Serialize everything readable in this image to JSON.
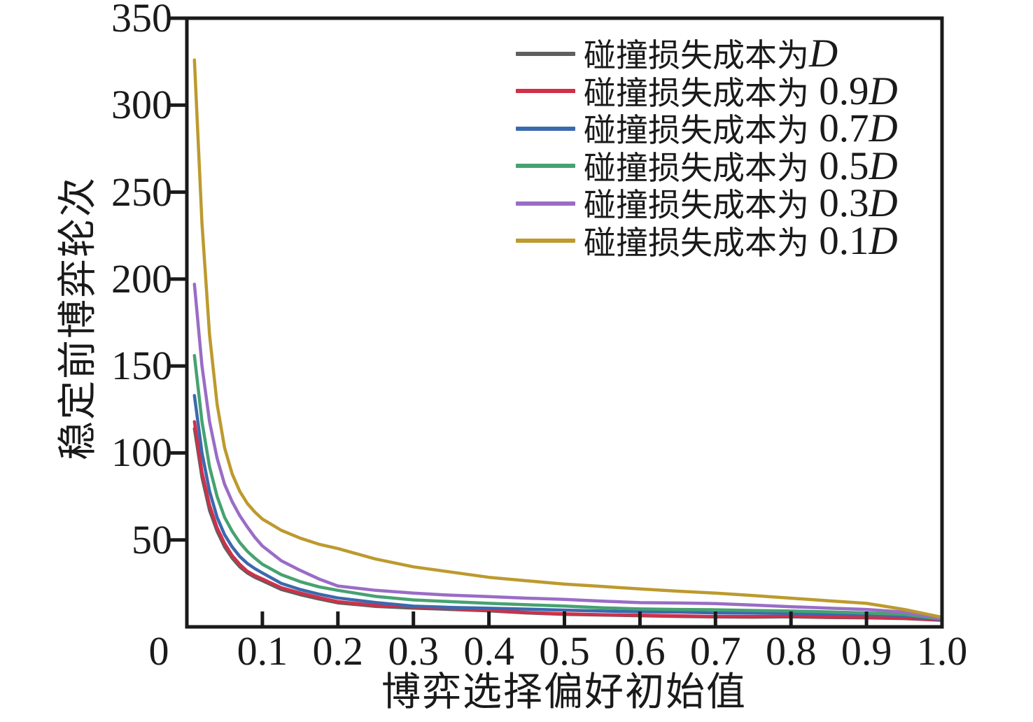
{
  "chart_data": {
    "type": "line",
    "title": "",
    "xlabel": "博弈选择偏好初始值",
    "ylabel": "稳定前博弈轮次",
    "xlim": [
      0,
      1.0
    ],
    "ylim": [
      0,
      350
    ],
    "grid": "off",
    "legend_position": "upper right",
    "axis_color": "#1a1a1a",
    "x_tick_labels": [
      "0",
      "0.1",
      "0.2",
      "0.3",
      "0.4",
      "0.5",
      "0.6",
      "0.7",
      "0.8",
      "0.9",
      "1.0"
    ],
    "x_tick_values": [
      0,
      0.1,
      0.2,
      0.3,
      0.4,
      0.5,
      0.6,
      0.7,
      0.8,
      0.9,
      1.0
    ],
    "y_tick_labels": [
      "50",
      "100",
      "150",
      "200",
      "250",
      "300",
      "350"
    ],
    "y_tick_values": [
      50,
      100,
      150,
      200,
      250,
      300,
      350
    ],
    "x": [
      0.01,
      0.02,
      0.03,
      0.04,
      0.05,
      0.06,
      0.07,
      0.08,
      0.09,
      0.1,
      0.125,
      0.15,
      0.175,
      0.2,
      0.25,
      0.3,
      0.35,
      0.4,
      0.45,
      0.5,
      0.55,
      0.6,
      0.65,
      0.7,
      0.75,
      0.8,
      0.85,
      0.9,
      0.95,
      1.0
    ],
    "series": [
      {
        "label": "碰撞损失成本为D",
        "label_text": "碰撞损失成本为",
        "label_num": "",
        "label_math": "D",
        "color": "#5f5f5f",
        "values": [
          114,
          86,
          67,
          55,
          46,
          39.5,
          34.5,
          31,
          28.5,
          26.5,
          21.5,
          18.5,
          16,
          13.8,
          11.8,
          10.8,
          10,
          9.2,
          8,
          7.2,
          6.8,
          6.4,
          6,
          5.7,
          5.6,
          5.8,
          5.4,
          5.2,
          4.8,
          3.8
        ]
      },
      {
        "label": "碰撞损失成本为 0.9D",
        "label_text": "碰撞损失成本为",
        "label_num": " 0.9",
        "label_math": "D",
        "color": "#d03049",
        "values": [
          118,
          89,
          70,
          57,
          48,
          41,
          36,
          32,
          29.5,
          27.5,
          22.5,
          19.5,
          16.8,
          14.5,
          12.3,
          11.5,
          10.5,
          9.5,
          8.3,
          7.5,
          7,
          6.7,
          6.3,
          5.9,
          5.9,
          6.1,
          5.7,
          5.5,
          5,
          4
        ]
      },
      {
        "label": "碰撞损失成本为 0.7D",
        "label_text": "碰撞损失成本为",
        "label_num": " 0.7",
        "label_math": "D",
        "color": "#3b69ae",
        "values": [
          133,
          100,
          78,
          63,
          53,
          46,
          40.5,
          36.5,
          33.5,
          31,
          25,
          21.5,
          18.8,
          16.6,
          14,
          11.9,
          11.2,
          10.7,
          10.2,
          9.6,
          9.1,
          8.7,
          8.5,
          8,
          7.9,
          7.8,
          7.4,
          7.1,
          6.5,
          4.2
        ]
      },
      {
        "label": "碰撞损失成本为 0.5D",
        "label_text": "碰撞损失成本为",
        "label_num": " 0.5",
        "label_math": "D",
        "color": "#46a271",
        "values": [
          156,
          118,
          92,
          75,
          63,
          55,
          48.5,
          43.5,
          39.5,
          36,
          30,
          26,
          23,
          21,
          17.5,
          15.5,
          14.5,
          13.5,
          12.7,
          12,
          11,
          10.3,
          10,
          9.8,
          9.4,
          9.1,
          8.6,
          8,
          7.2,
          4.5
        ]
      },
      {
        "label": "碰撞损失成本为 0.3D",
        "label_text": "碰撞损失成本为",
        "label_num": " 0.3",
        "label_math": "D",
        "color": "#9a6cc6",
        "values": [
          197,
          150,
          118,
          97,
          82,
          72,
          64,
          57.5,
          51.5,
          46.5,
          38,
          32.5,
          27.5,
          23.5,
          21,
          19.4,
          18.2,
          17.4,
          16.5,
          15.8,
          14.8,
          13.9,
          13.7,
          13.4,
          12.5,
          11.6,
          10.8,
          10,
          8.5,
          4.8
        ]
      },
      {
        "label": "碰撞损失成本为 0.1D",
        "label_text": "碰撞损失成本为",
        "label_num": " 0.1",
        "label_math": "D",
        "color": "#bd9a2e",
        "values": [
          326,
          232,
          168,
          128,
          103,
          88,
          78,
          71,
          66,
          62,
          55.5,
          51,
          47.5,
          45,
          39,
          34.5,
          31.5,
          28.5,
          26.5,
          24.6,
          23.2,
          21.8,
          20.5,
          19.4,
          18,
          16.5,
          15,
          13.5,
          10,
          5.5
        ]
      }
    ]
  }
}
